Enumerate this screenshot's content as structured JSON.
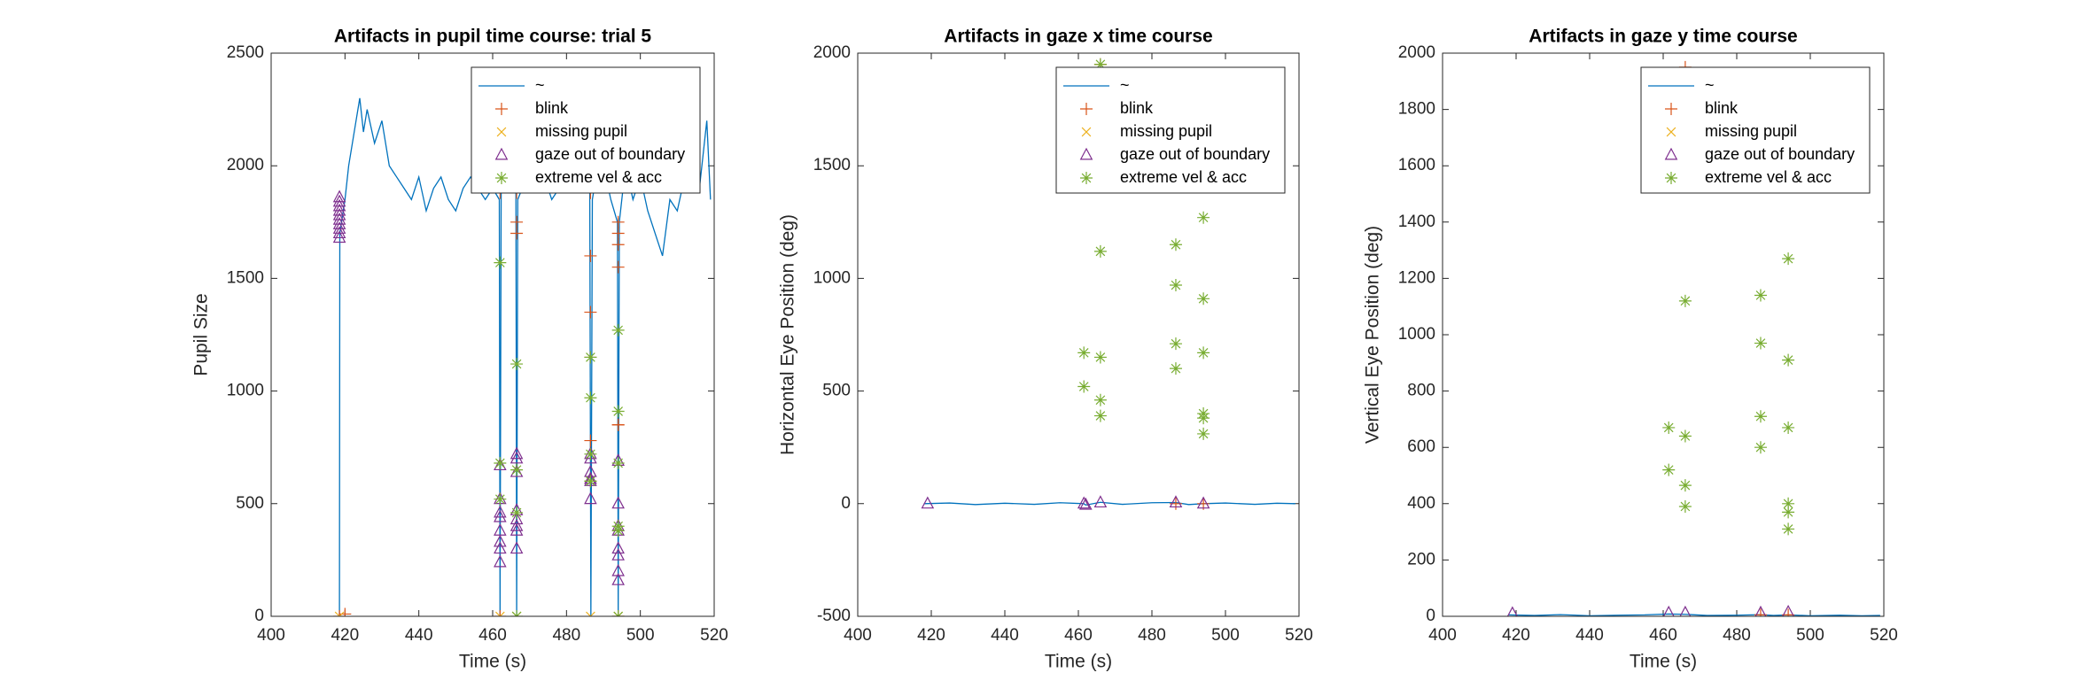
{
  "chart_data": [
    {
      "type": "line",
      "title": "Artifacts in pupil time course: trial 5",
      "x_label": "Time (s)",
      "y_label": "Pupil Size",
      "xlim": [
        400,
        520
      ],
      "xticks": [
        400,
        420,
        440,
        460,
        480,
        500,
        520
      ],
      "ylim": [
        0,
        2500
      ],
      "yticks": [
        0,
        500,
        1000,
        1500,
        2000,
        2500
      ],
      "legend": "northeast",
      "series": [
        {
          "name": "~",
          "color": "#0072bd",
          "marker": "line",
          "x": [
            418.5,
            418.6,
            420,
            421,
            423,
            424,
            425,
            426,
            428,
            430,
            432,
            434,
            436,
            438,
            440,
            442,
            444,
            446,
            448,
            450,
            452,
            454,
            456,
            458,
            460,
            461.8,
            462,
            462.3,
            464,
            466.3,
            466.5,
            466.8,
            468,
            470,
            472,
            474,
            476,
            478,
            480,
            482,
            484,
            486.3,
            486.6,
            487,
            488,
            490,
            492,
            493.8,
            494,
            494.3,
            496,
            498,
            500,
            502,
            504,
            506,
            508,
            510,
            512,
            514,
            516,
            518,
            519
          ],
          "values": [
            0,
            1700,
            1850,
            2000,
            2200,
            2300,
            2150,
            2250,
            2100,
            2200,
            2000,
            1950,
            1900,
            1850,
            1950,
            1800,
            1900,
            1950,
            1850,
            1800,
            1900,
            1950,
            1900,
            1850,
            1900,
            1850,
            0,
            1880,
            1900,
            1880,
            0,
            1850,
            1900,
            2000,
            1900,
            1950,
            1850,
            1900,
            1950,
            1900,
            1900,
            1900,
            0,
            1850,
            1950,
            2000,
            1850,
            1750,
            0,
            1750,
            2000,
            1850,
            1950,
            1800,
            1700,
            1600,
            1850,
            1800,
            1950,
            2000,
            1900,
            2200,
            1850
          ]
        },
        {
          "name": "blink",
          "color": "#d95319",
          "marker": "+",
          "x": [
            418.5,
            420,
            462,
            462,
            462,
            466.5,
            466.5,
            466.5,
            486.5,
            486.5,
            486.5,
            486.5,
            486.5,
            486.5,
            486.5,
            494,
            494,
            494,
            494,
            494,
            494,
            494
          ],
          "values": [
            0,
            10,
            1880,
            1920,
            0,
            1880,
            1750,
            1700,
            1880,
            1920,
            1600,
            1350,
            1150,
            780,
            600,
            1750,
            1700,
            1650,
            1550,
            850,
            850,
            0
          ]
        },
        {
          "name": "missing pupil",
          "color": "#edb120",
          "marker": "x",
          "x": [
            418.5,
            462,
            466.5,
            486.5,
            494
          ],
          "values": [
            0,
            0,
            0,
            0,
            0
          ]
        },
        {
          "name": "gaze out of boundary",
          "color": "#7e2f8e",
          "marker": "^",
          "x": [
            418.5,
            418.5,
            418.5,
            418.5,
            418.5,
            418.5,
            418.5,
            418.5,
            418.5,
            418.5,
            462,
            462,
            462,
            462,
            462,
            462,
            462,
            462,
            466.5,
            466.5,
            466.5,
            466.5,
            466.5,
            466.5,
            466.5,
            466.5,
            486.5,
            486.5,
            486.5,
            486.5,
            486.5,
            486.5,
            494,
            494,
            494,
            494,
            494,
            494,
            494,
            494
          ],
          "values": [
            1680,
            1700,
            1720,
            1740,
            1760,
            1780,
            1800,
            1820,
            1840,
            1860,
            670,
            520,
            460,
            440,
            380,
            330,
            300,
            240,
            720,
            700,
            640,
            470,
            430,
            400,
            380,
            300,
            720,
            700,
            640,
            610,
            600,
            520,
            690,
            500,
            400,
            380,
            300,
            270,
            200,
            160
          ]
        },
        {
          "name": "extreme vel & acc",
          "color": "#77ac30",
          "marker": "*",
          "x": [
            462,
            462,
            462,
            466.5,
            466.5,
            466.5,
            466.5,
            486.5,
            486.5,
            486.5,
            486.5,
            494,
            494,
            494,
            494,
            494,
            494
          ],
          "values": [
            1570,
            680,
            520,
            1120,
            650,
            460,
            0,
            1150,
            970,
            720,
            600,
            1270,
            910,
            680,
            400,
            380,
            0
          ]
        }
      ]
    },
    {
      "type": "line",
      "title": "Artifacts in gaze x time course",
      "x_label": "Time (s)",
      "y_label": "Horizontal Eye Position (deg)",
      "xlim": [
        400,
        520
      ],
      "xticks": [
        400,
        420,
        440,
        460,
        480,
        500,
        520
      ],
      "ylim": [
        -500,
        2000
      ],
      "yticks": [
        -500,
        0,
        500,
        1000,
        1500,
        2000
      ],
      "legend": "northeast",
      "series": [
        {
          "name": "~",
          "color": "#0072bd",
          "marker": "line",
          "x": [
            418,
            425,
            432,
            440,
            448,
            455,
            461.5,
            462,
            466,
            472,
            480,
            486.5,
            490,
            494,
            500,
            508,
            514,
            519
          ],
          "values": [
            0,
            3,
            -4,
            2,
            -3,
            4,
            0,
            -6,
            6,
            -3,
            4,
            5,
            -4,
            0,
            3,
            -3,
            2,
            0
          ]
        },
        {
          "name": "blink",
          "color": "#d95319",
          "marker": "+",
          "x": [
            466,
            486.5,
            494
          ],
          "values": [
            1950,
            0,
            0
          ]
        },
        {
          "name": "missing pupil",
          "color": "#edb120",
          "marker": "x",
          "x": [],
          "values": []
        },
        {
          "name": "gaze out of boundary",
          "color": "#7e2f8e",
          "marker": "^",
          "x": [
            419,
            461.5,
            462,
            466,
            486.5,
            494
          ],
          "values": [
            0,
            0,
            -5,
            5,
            5,
            0
          ]
        },
        {
          "name": "extreme vel & acc",
          "color": "#77ac30",
          "marker": "*",
          "x": [
            461.5,
            461.5,
            466,
            466,
            466,
            466,
            466,
            486.5,
            486.5,
            486.5,
            486.5,
            494,
            494,
            494,
            494,
            494,
            494
          ],
          "values": [
            670,
            520,
            1950,
            1120,
            650,
            460,
            390,
            1150,
            970,
            710,
            600,
            1270,
            910,
            670,
            400,
            380,
            310
          ]
        }
      ]
    },
    {
      "type": "line",
      "title": "Artifacts in gaze y time course",
      "x_label": "Time (s)",
      "y_label": "Vertical Eye Position (deg)",
      "xlim": [
        400,
        520
      ],
      "xticks": [
        400,
        420,
        440,
        460,
        480,
        500,
        520
      ],
      "ylim": [
        0,
        2000
      ],
      "yticks": [
        0,
        200,
        400,
        600,
        800,
        1000,
        1200,
        1400,
        1600,
        1800,
        2000
      ],
      "legend": "northeast",
      "series": [
        {
          "name": "~",
          "color": "#0072bd",
          "marker": "line",
          "x": [
            418,
            425,
            432,
            440,
            448,
            455,
            461.5,
            466,
            472,
            480,
            486.5,
            490,
            494,
            500,
            508,
            514,
            519
          ],
          "values": [
            5,
            3,
            6,
            2,
            4,
            5,
            8,
            7,
            3,
            4,
            6,
            3,
            5,
            2,
            4,
            2,
            3
          ]
        },
        {
          "name": "blink",
          "color": "#d95319",
          "marker": "+",
          "x": [
            466,
            486.5,
            494
          ],
          "values": [
            1950,
            5,
            5
          ]
        },
        {
          "name": "missing pupil",
          "color": "#edb120",
          "marker": "x",
          "x": [],
          "values": []
        },
        {
          "name": "gaze out of boundary",
          "color": "#7e2f8e",
          "marker": "^",
          "x": [
            419,
            461.5,
            466,
            486.5,
            494
          ],
          "values": [
            10,
            12,
            12,
            12,
            15
          ]
        },
        {
          "name": "extreme vel & acc",
          "color": "#77ac30",
          "marker": "*",
          "x": [
            461.5,
            461.5,
            466,
            466,
            466,
            466,
            486.5,
            486.5,
            486.5,
            486.5,
            494,
            494,
            494,
            494,
            494,
            494
          ],
          "values": [
            670,
            520,
            1120,
            640,
            465,
            390,
            1140,
            970,
            710,
            600,
            1270,
            910,
            670,
            400,
            370,
            310
          ]
        }
      ]
    }
  ]
}
